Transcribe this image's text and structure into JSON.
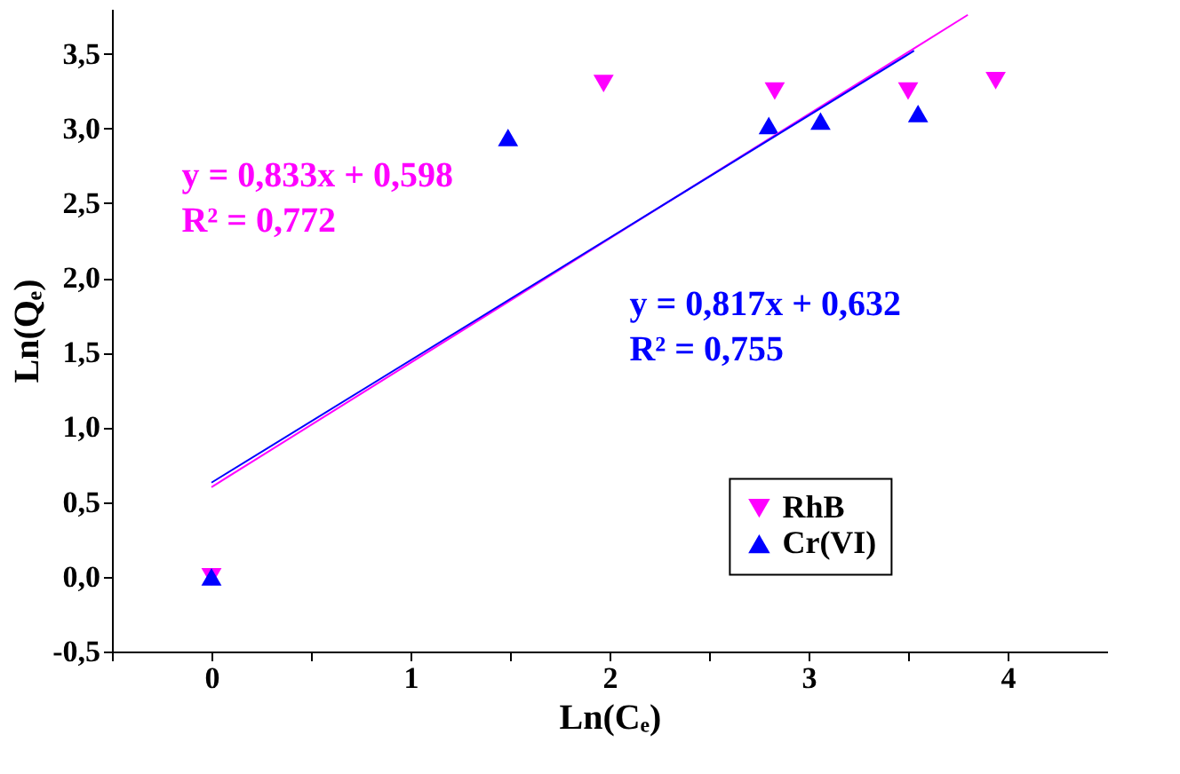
{
  "chart_data": {
    "type": "scatter",
    "xlabel": "Ln(Cₑ)",
    "ylabel": "Ln(Qₑ)",
    "xlim": [
      -0.5,
      4.5
    ],
    "ylim": [
      -0.5,
      3.8
    ],
    "xticks": [
      {
        "value": -0.5,
        "label": null
      },
      0,
      {
        "value": 0.5,
        "label": null
      },
      1,
      {
        "value": 1.5,
        "label": null
      },
      2,
      {
        "value": 2.5,
        "label": null
      },
      3,
      {
        "value": 3.5,
        "label": null
      },
      4
    ],
    "yticks": [
      {
        "value": -0.5,
        "label": "-0,5"
      },
      {
        "value": 0,
        "label": "0,0"
      },
      {
        "value": 0.5,
        "label": "0,5"
      },
      {
        "value": 1,
        "label": "1,0"
      },
      {
        "value": 1.5,
        "label": "1,5"
      },
      {
        "value": 2,
        "label": "2,0"
      },
      {
        "value": 2.5,
        "label": "2,5"
      },
      {
        "value": 3,
        "label": "3,0"
      },
      {
        "value": 3.5,
        "label": "3,5"
      }
    ],
    "grid": false,
    "legend": "bottom right",
    "series": [
      {
        "name": "RhB",
        "color": "#ff00ff",
        "marker": "triangle_down",
        "x": [
          0,
          1.97,
          2.83,
          3.5,
          3.94
        ],
        "values": [
          0,
          3.3,
          3.25,
          3.25,
          3.32
        ]
      },
      {
        "name": "Cr(VI)",
        "color": "#0000ff",
        "marker": "triangle",
        "x": [
          0,
          1.49,
          2.8,
          3.06,
          3.55
        ],
        "values": [
          0,
          2.94,
          3.02,
          3.05,
          3.1
        ]
      },
      {
        "type": "line",
        "color": "#ff00ff",
        "x": [
          0,
          3.8
        ],
        "values": [
          0.6,
          3.76
        ]
      },
      {
        "type": "line",
        "color": "#0000ff",
        "x": [
          0,
          3.53
        ],
        "values": [
          0.63,
          3.52
        ]
      }
    ],
    "annotations": [
      "y = 0,833x + 0,598",
      "R² = 0,772",
      "y = 0,817x + 0,632",
      "R² = 0,755"
    ]
  }
}
